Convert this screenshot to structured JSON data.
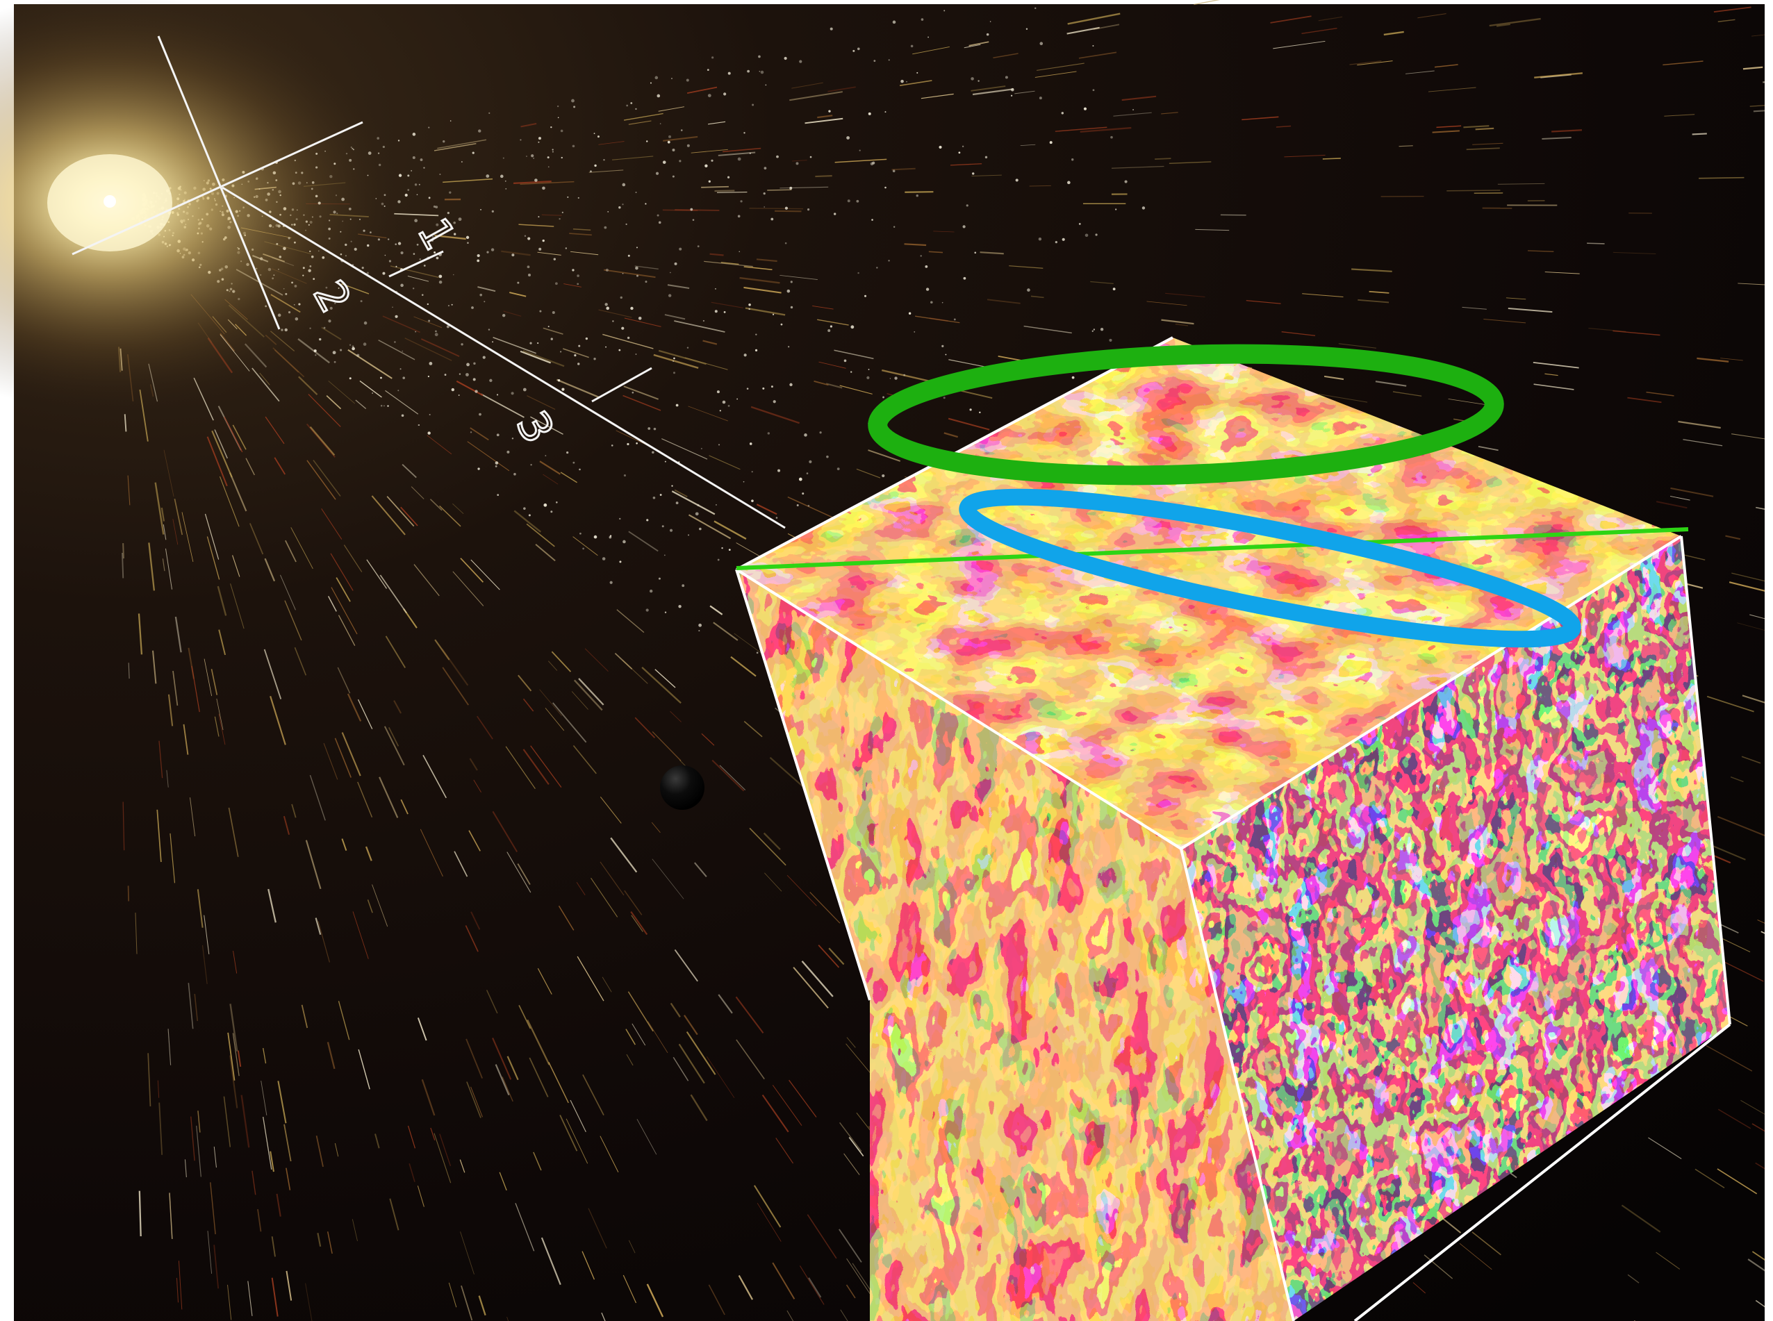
{
  "scene": {
    "axis": {
      "tick_labels": [
        "1",
        "2",
        "3"
      ]
    },
    "colors": {
      "background": "#000000",
      "star_core": "#fff6c8",
      "star_glow": "#c9a24a",
      "wind_streak": "#b89a4e",
      "axis_line": "#f4f4f4",
      "cube_edge": "#ffffff",
      "turbulence": [
        "#e8381a",
        "#ff7a2a",
        "#e0b636",
        "#2a1cd6",
        "#7a0f3a",
        "#ffe89a"
      ],
      "ring_green": "#1db010",
      "ring_blue": "#10a4ea",
      "green_line": "#2dd414",
      "planet": "#050505"
    },
    "icons": {
      "star": "star-glow",
      "planet": "dark-planet-sphere",
      "ring_green": "green-ellipse-annotation",
      "ring_blue": "blue-ellipse-annotation"
    }
  }
}
